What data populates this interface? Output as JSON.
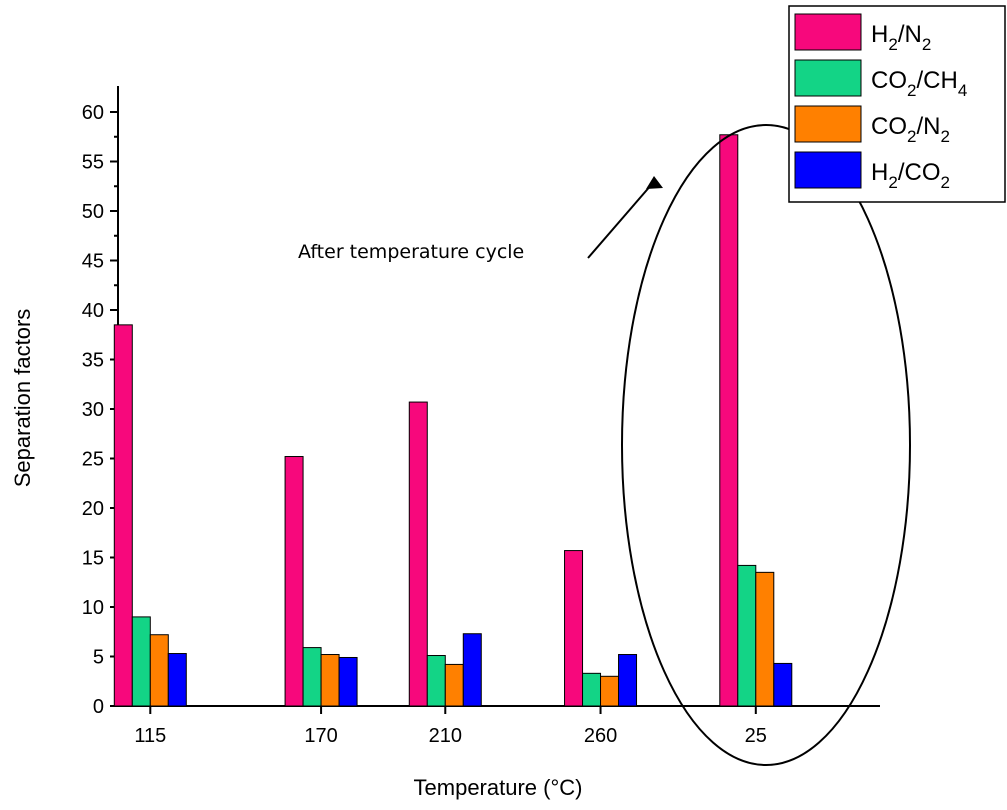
{
  "chart_data": {
    "type": "bar",
    "title": "",
    "xlabel": "Temperature (°C)",
    "ylabel": "Separation factors",
    "categories": [
      "115",
      "170",
      "210",
      "260",
      "25"
    ],
    "category_x": [
      115,
      170,
      210,
      260,
      310
    ],
    "ylim": [
      0,
      62
    ],
    "yticks": [
      0,
      5,
      10,
      15,
      20,
      25,
      30,
      35,
      40,
      45,
      50,
      55,
      60
    ],
    "grid": false,
    "legend_position": "top-right",
    "series": [
      {
        "name_main": "H",
        "name_sub1": "2",
        "name_mid": "/N",
        "name_sub2": "2",
        "color": "#f7087c",
        "values": [
          38.5,
          25.2,
          30.7,
          15.7,
          57.7
        ]
      },
      {
        "name_main": "CO",
        "name_sub1": "2",
        "name_mid": "/CH",
        "name_sub2": "4",
        "color": "#13d486",
        "values": [
          9.0,
          5.9,
          5.1,
          3.3,
          14.2
        ]
      },
      {
        "name_main": "CO",
        "name_sub1": "2",
        "name_mid": "/N",
        "name_sub2": "2",
        "color": "#ff8000",
        "values": [
          7.2,
          5.2,
          4.2,
          3.0,
          13.5
        ]
      },
      {
        "name_main": "H",
        "name_sub1": "2",
        "name_mid": "/CO",
        "name_sub2": "2",
        "color": "#0000ff",
        "values": [
          5.3,
          4.9,
          7.3,
          5.2,
          4.3
        ]
      }
    ],
    "annotation": {
      "text": "After temperature cycle",
      "target_category": "25"
    }
  }
}
